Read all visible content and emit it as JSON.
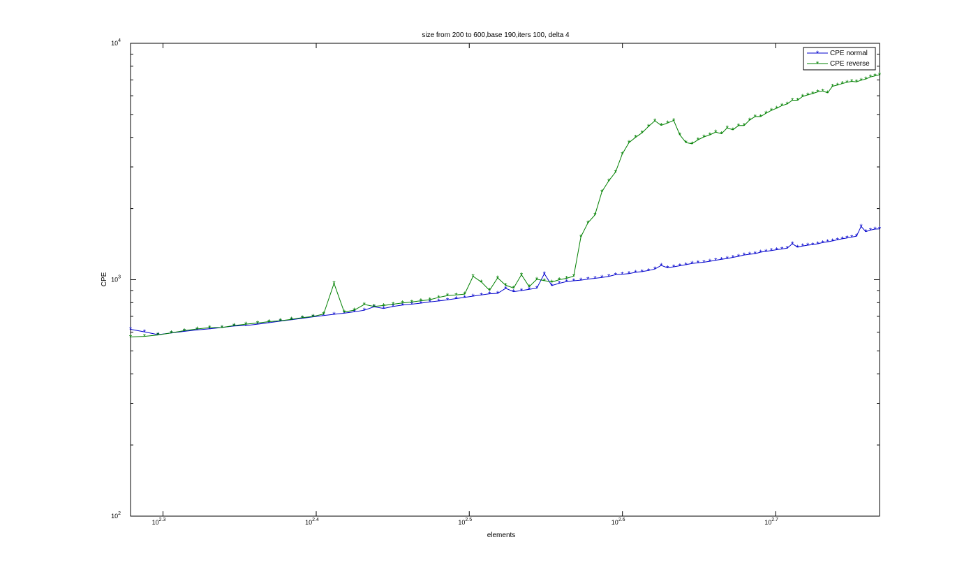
{
  "chart_data": {
    "type": "line",
    "title": "size from 200 to 600,base 190,iters 100, delta 4",
    "xlabel": "elements",
    "ylabel": "CPE",
    "xscale": "log",
    "yscale": "log",
    "xlim": [
      190,
      586
    ],
    "ylim": [
      100,
      10000
    ],
    "grid": false,
    "legend_position": "top-right",
    "x_ticks": [
      {
        "base": "10",
        "exp": "2.3",
        "value": 199.5
      },
      {
        "base": "10",
        "exp": "2.4",
        "value": 251.2
      },
      {
        "base": "10",
        "exp": "2.5",
        "value": 316.2
      },
      {
        "base": "10",
        "exp": "2.6",
        "value": 398.1
      },
      {
        "base": "10",
        "exp": "2.7",
        "value": 501.2
      }
    ],
    "y_ticks": [
      {
        "base": "10",
        "exp": "2",
        "value": 100
      },
      {
        "base": "10",
        "exp": "3",
        "value": 1000
      },
      {
        "base": "10",
        "exp": "4",
        "value": 10000
      }
    ],
    "x": [
      190,
      194,
      198,
      202,
      206,
      210,
      214,
      218,
      222,
      226,
      230,
      234,
      238,
      242,
      246,
      250,
      254,
      258,
      262,
      266,
      270,
      274,
      278,
      282,
      286,
      290,
      294,
      298,
      302,
      306,
      310,
      314,
      318,
      322,
      326,
      330,
      334,
      338,
      342,
      346,
      350,
      354,
      358,
      362,
      366,
      370,
      374,
      378,
      382,
      386,
      390,
      394,
      398,
      402,
      406,
      410,
      414,
      418,
      422,
      426,
      430,
      434,
      438,
      442,
      446,
      450,
      454,
      458,
      462,
      466,
      470,
      474,
      478,
      482,
      486,
      490,
      494,
      498,
      502,
      506,
      510,
      514,
      518,
      522,
      526,
      530,
      534,
      538,
      542,
      546,
      550,
      554,
      558,
      562,
      566,
      570,
      574,
      578,
      582,
      586
    ],
    "series": [
      {
        "name": "CPE normal",
        "color": "#0000cc",
        "marker": "*",
        "values": [
          617,
          602,
          586,
          595,
          605,
          613,
          620,
          628,
          637,
          640,
          649,
          658,
          668,
          677,
          687,
          697,
          706,
          714,
          722,
          732,
          743,
          768,
          756,
          771,
          781,
          788,
          796,
          806,
          813,
          822,
          832,
          842,
          852,
          862,
          872,
          876,
          920,
          890,
          900,
          911,
          921,
          1060,
          945,
          966,
          982,
          990,
          996,
          1006,
          1014,
          1023,
          1033,
          1050,
          1055,
          1062,
          1075,
          1082,
          1094,
          1110,
          1150,
          1124,
          1134,
          1146,
          1158,
          1172,
          1180,
          1186,
          1197,
          1209,
          1220,
          1230,
          1243,
          1256,
          1272,
          1282,
          1289,
          1308,
          1318,
          1329,
          1340,
          1349,
          1360,
          1420,
          1374,
          1389,
          1400,
          1407,
          1420,
          1436,
          1447,
          1460,
          1476,
          1490,
          1502,
          1515,
          1528,
          1680,
          1597,
          1622,
          1637,
          1641
        ]
      },
      {
        "name": "CPE reverse",
        "color": "#008000",
        "marker": "*",
        "values": [
          573,
          576,
          584,
          596,
          609,
          619,
          627,
          628,
          640,
          649,
          656,
          665,
          671,
          680,
          691,
          699,
          716,
          965,
          730,
          744,
          786,
          771,
          778,
          788,
          798,
          805,
          815,
          823,
          842,
          857,
          862,
          869,
          1034,
          978,
          902,
          1018,
          948,
          922,
          1050,
          934,
          1004,
          991,
          977,
          1000,
          1014,
          1036,
          1520,
          1742,
          1880,
          2360,
          2620,
          2853,
          3400,
          3800,
          4000,
          4180,
          4450,
          4700,
          4500,
          4600,
          4720,
          4100,
          3800,
          3760,
          3906,
          4020,
          4100,
          4210,
          4144,
          4388,
          4309,
          4486,
          4490,
          4737,
          4900,
          4900,
          5057,
          5200,
          5317,
          5451,
          5541,
          5746,
          5746,
          5959,
          6047,
          6131,
          6232,
          6286,
          6173,
          6583,
          6657,
          6756,
          6841,
          6903,
          6870,
          6982,
          7058,
          7205,
          7281,
          7363
        ]
      }
    ]
  }
}
